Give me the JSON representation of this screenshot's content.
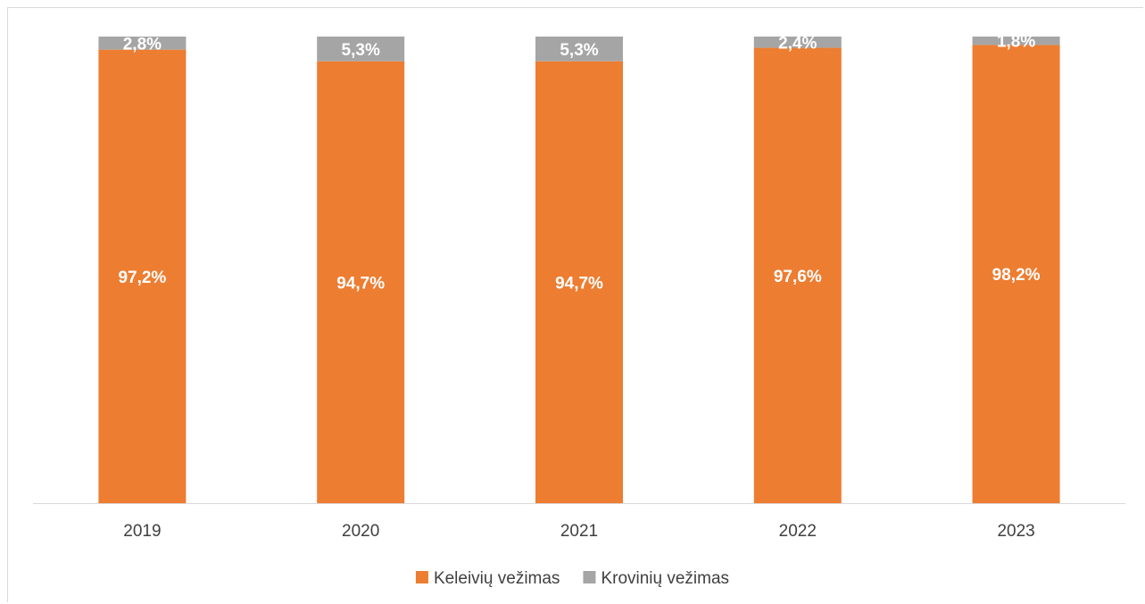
{
  "chart_data": {
    "type": "bar",
    "stacked": true,
    "percent_stacked": true,
    "categories": [
      "2019",
      "2020",
      "2021",
      "2022",
      "2023"
    ],
    "series": [
      {
        "name": "Keleivių vežimas",
        "values": [
          97.2,
          94.7,
          94.7,
          97.6,
          98.2
        ],
        "labels": [
          "97,2%",
          "94,7%",
          "94,7%",
          "97,6%",
          "98,2%"
        ],
        "color": "#ED7D31"
      },
      {
        "name": "Krovinių vežimas",
        "values": [
          2.8,
          5.3,
          5.3,
          2.4,
          1.8
        ],
        "labels": [
          "2,8%",
          "5,3%",
          "5,3%",
          "2,4%",
          "1,8%"
        ],
        "color": "#A5A5A5"
      }
    ],
    "ylim": [
      0,
      100
    ],
    "grid": false,
    "legend_position": "bottom"
  }
}
